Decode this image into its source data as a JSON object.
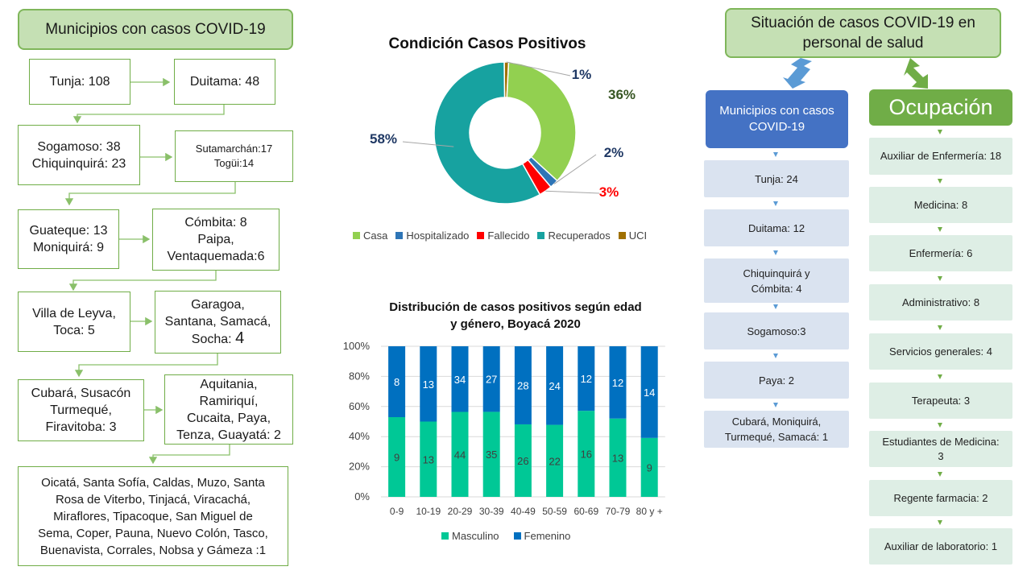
{
  "left": {
    "title": "Municipios con casos COVID-19",
    "rows": [
      [
        "Tunja: 108",
        "Duitama: 48"
      ],
      [
        "Sogamoso: 38",
        "Chiquinquirá: 23",
        "Sutamarchán:17",
        "Togüi:14"
      ],
      [
        "Guateque: 13",
        "Moniquirá: 9",
        "Cómbita: 8",
        "Paipa,",
        "Ventaquemada:6"
      ],
      [
        "Villa de Leyva,",
        "Toca: 5",
        "Garagoa,",
        "Santana, Samacá,",
        "Socha:",
        "4"
      ],
      [
        "Cubará, Susacón",
        "Turmequé,",
        "Firavitoba: 3",
        "Aquitania,",
        "Ramiriquí,",
        "Cucaita, Paya,",
        "Tenza, Guayatá: 2"
      ]
    ],
    "final_lines": [
      "Oicatá, Santa Sofía, Caldas, Muzo, Santa",
      "Rosa de Viterbo, Tinjacá, Viracachá,",
      "Miraflores, Tipacoque, San Miguel de",
      "Sema, Coper, Pauna, Nuevo Colón, Tasco,",
      "Buenavista, Corrales, Nobsa y Gámeza :1"
    ]
  },
  "chart_data": [
    {
      "type": "pie",
      "title": "Condición Casos Positivos",
      "donut": true,
      "labels": [
        "Casa",
        "Hospitalizado",
        "Fallecido",
        "Recuperados",
        "UCI"
      ],
      "values": [
        36,
        2,
        3,
        58,
        1
      ],
      "value_labels": [
        "36%",
        "2%",
        "3%",
        "58%",
        "1%"
      ],
      "colors": [
        "#92d050",
        "#2e75b6",
        "#ff0000",
        "#17a2a0",
        "#a07000"
      ],
      "label_colors": [
        "#375623",
        "#1f3864",
        "#ff0000",
        "#1f3864",
        "#1f3864"
      ],
      "legend_position": "bottom"
    },
    {
      "type": "bar",
      "stacked_percent": true,
      "title": "Distribución de casos positivos según edad y género, Boyacá 2020",
      "title_lines": [
        "Distribución de casos positivos según edad",
        "y género, Boyacá 2020"
      ],
      "categories": [
        "0-9",
        "10-19",
        "20-29",
        "30-39",
        "40-49",
        "50-59",
        "60-69",
        "70-79",
        "80 y +"
      ],
      "series": [
        {
          "name": "Masculino",
          "values": [
            9,
            13,
            44,
            35,
            26,
            22,
            16,
            13,
            9
          ],
          "color": "#00c896"
        },
        {
          "name": "Femenino",
          "values": [
            8,
            13,
            34,
            27,
            28,
            24,
            12,
            12,
            14
          ],
          "color": "#0070c0"
        }
      ],
      "y_ticks": [
        "0%",
        "20%",
        "40%",
        "60%",
        "80%",
        "100%"
      ],
      "ylim": [
        0,
        100
      ],
      "grid": true,
      "legend_position": "bottom"
    }
  ],
  "right": {
    "title_lines": [
      "Situación de casos COVID-19 en",
      "personal de salud"
    ],
    "municipios": {
      "header_lines": [
        "Municipios con casos",
        "COVID-19"
      ],
      "items": [
        [
          "Tunja: 24"
        ],
        [
          "Duitama: 12"
        ],
        [
          "Chiquinquirá y",
          "Cómbita: 4"
        ],
        [
          "Sogamoso:3"
        ],
        [
          "Paya: 2"
        ],
        [
          "Cubará, Moniquirá,",
          "Turmequé, Samacá: 1"
        ]
      ]
    },
    "ocupacion": {
      "header": "Ocupación",
      "items": [
        [
          "Auxiliar de Enfermería: 18"
        ],
        [
          "Medicina: 8"
        ],
        [
          "Enfermería: 6"
        ],
        [
          "Administrativo:  8"
        ],
        [
          "Servicios generales: 4"
        ],
        [
          "Terapeuta: 3"
        ],
        [
          "Estudiantes de Medicina:",
          "3"
        ],
        [
          "Regente farmacia: 2"
        ],
        [
          "Auxiliar de laboratorio: 1"
        ]
      ]
    }
  },
  "colors": {
    "green_border": "#70ad47",
    "green_header_fill": "#c5e0b4",
    "blue_header": "#4472c4",
    "blue_item": "#dae3f0",
    "green_item": "#deeee5",
    "arrow_blue": "#5b9bd5",
    "arrow_green": "#70ad47"
  }
}
